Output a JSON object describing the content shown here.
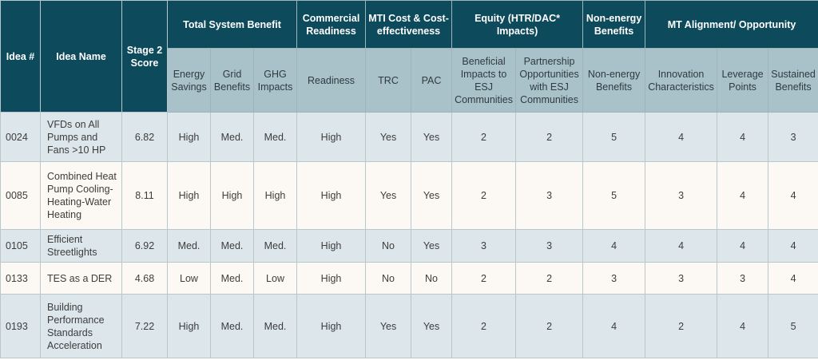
{
  "headers": {
    "idea_num": "Idea #",
    "idea_name": "Idea Name",
    "stage2": "Stage 2 Score",
    "groups": {
      "tsb": "Total System Benefit",
      "commercial": "Commercial Readiness",
      "mti": "MTI Cost & Cost-effectiveness",
      "equity": "Equity (HTR/DAC* Impacts)",
      "nonenergy": "Non-energy Benefits",
      "mt": "MT Alignment/ Opportunity"
    },
    "sub": {
      "energy": "Energy Savings",
      "grid": "Grid Benefits",
      "ghg": "GHG Impacts",
      "readiness": "Readiness",
      "trc": "TRC",
      "pac": "PAC",
      "beneficial": "Beneficial Impacts to ESJ Communities",
      "partnership": "Partnership Opportunities with ESJ Communities",
      "neb": "Non-energy Benefits",
      "innovation": "Innovation Characteristics",
      "leverage": "Leverage Points",
      "sustained": "Sustained Benefits"
    }
  },
  "rows": [
    {
      "id": "0024",
      "name": "VFDs on All Pumps and Fans >10 HP",
      "score": "6.82",
      "energy": "High",
      "grid": "Med.",
      "ghg": "Med.",
      "readiness": "High",
      "trc": "Yes",
      "pac": "Yes",
      "beneficial": "2",
      "partnership": "2",
      "neb": "5",
      "innovation": "4",
      "leverage": "4",
      "sustained": "3"
    },
    {
      "id": "0085",
      "name": "Combined Heat Pump Cooling-Heating-Water Heating",
      "score": "8.11",
      "energy": "High",
      "grid": "High",
      "ghg": "High",
      "readiness": "High",
      "trc": "Yes",
      "pac": "Yes",
      "beneficial": "2",
      "partnership": "3",
      "neb": "5",
      "innovation": "3",
      "leverage": "4",
      "sustained": "4"
    },
    {
      "id": "0105",
      "name": "Efficient Streetlights",
      "score": "6.92",
      "energy": "Med.",
      "grid": "Med.",
      "ghg": "Med.",
      "readiness": "High",
      "trc": "No",
      "pac": "Yes",
      "beneficial": "3",
      "partnership": "3",
      "neb": "4",
      "innovation": "4",
      "leverage": "4",
      "sustained": "4"
    },
    {
      "id": "0133",
      "name": "TES as a DER",
      "score": "4.68",
      "energy": "Low",
      "grid": "Med.",
      "ghg": "Low",
      "readiness": "High",
      "trc": "No",
      "pac": "No",
      "beneficial": "2",
      "partnership": "2",
      "neb": "3",
      "innovation": "3",
      "leverage": "3",
      "sustained": "4"
    },
    {
      "id": "0193",
      "name": "Building Performance Standards Acceleration",
      "score": "7.22",
      "energy": "High",
      "grid": "Med.",
      "ghg": "Med.",
      "readiness": "High",
      "trc": "Yes",
      "pac": "Yes",
      "beneficial": "2",
      "partnership": "2",
      "neb": "4",
      "innovation": "2",
      "leverage": "4",
      "sustained": "5"
    }
  ],
  "colors": {
    "header_dark": "#0d4a5c",
    "header_light": "#a9c1c9",
    "row_odd": "#dde6ea",
    "row_even": "#fcf9f4"
  }
}
